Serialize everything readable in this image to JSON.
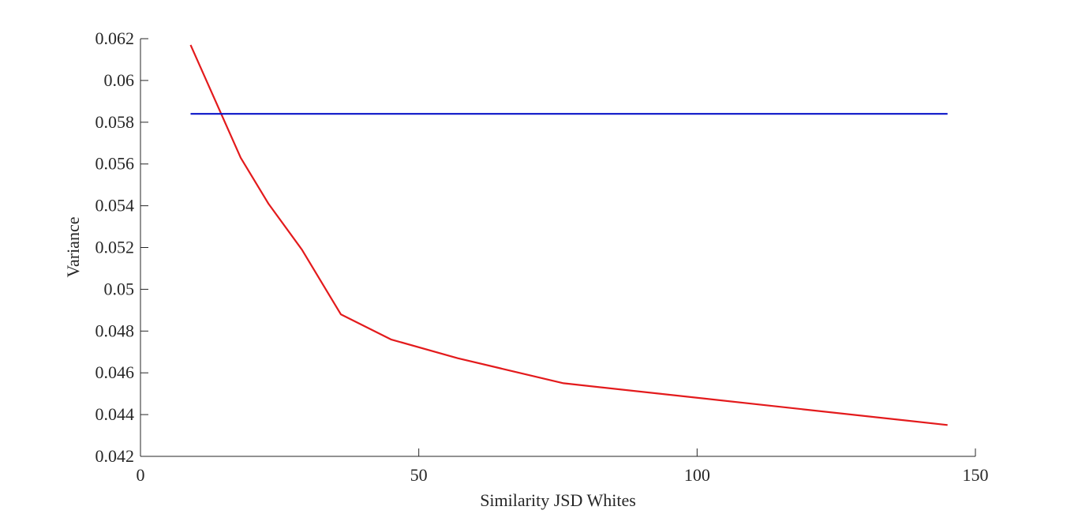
{
  "chart_data": {
    "type": "line",
    "title": "",
    "xlabel": "Similarity JSD Whites",
    "ylabel": "Variance",
    "xlim": [
      0,
      150
    ],
    "ylim": [
      0.042,
      0.062
    ],
    "xticks": [
      0,
      50,
      100,
      150
    ],
    "xtick_labels": [
      "0",
      "50",
      "100",
      "150"
    ],
    "yticks": [
      0.042,
      0.044,
      0.046,
      0.048,
      0.05,
      0.052,
      0.054,
      0.056,
      0.058,
      0.06,
      0.062
    ],
    "ytick_labels": [
      "0.042",
      "0.044",
      "0.046",
      "0.048",
      "0.05",
      "0.052",
      "0.054",
      "0.056",
      "0.058",
      "0.06",
      "0.062"
    ],
    "grid": false,
    "legend": "none",
    "series": [
      {
        "color": "#e31a1c",
        "x": [
          9,
          18,
          23,
          29,
          36,
          45,
          57,
          76,
          145
        ],
        "y": [
          0.0617,
          0.0563,
          0.0541,
          0.0519,
          0.0488,
          0.0476,
          0.0467,
          0.0455,
          0.0435
        ]
      },
      {
        "color": "#0a14c8",
        "x": [
          9,
          145
        ],
        "y": [
          0.0584,
          0.0584
        ]
      }
    ]
  }
}
